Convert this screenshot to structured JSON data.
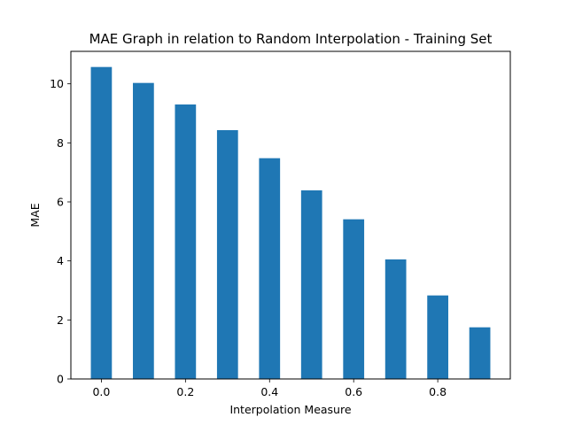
{
  "chart_data": {
    "type": "bar",
    "title": "MAE Graph in relation to Random Interpolation - Training Set",
    "xlabel": "Interpolation Measure",
    "ylabel": "MAE",
    "x": [
      0.0,
      0.1,
      0.2,
      0.3,
      0.4,
      0.5,
      0.6,
      0.7,
      0.8,
      0.9
    ],
    "values": [
      10.57,
      10.03,
      9.3,
      8.43,
      7.48,
      6.39,
      5.41,
      4.05,
      2.83,
      1.75
    ],
    "bar_width": 0.05,
    "xlim": [
      -0.0725,
      0.9725
    ],
    "ylim": [
      0,
      11.1
    ],
    "xticks": [
      0.0,
      0.2,
      0.4,
      0.6,
      0.8
    ],
    "xtick_labels": [
      "0.0",
      "0.2",
      "0.4",
      "0.6",
      "0.8"
    ],
    "yticks": [
      0,
      2,
      4,
      6,
      8,
      10
    ],
    "ytick_labels": [
      "0",
      "2",
      "4",
      "6",
      "8",
      "10"
    ],
    "bar_color": "#1f77b4",
    "grid": false,
    "legend": "none"
  }
}
